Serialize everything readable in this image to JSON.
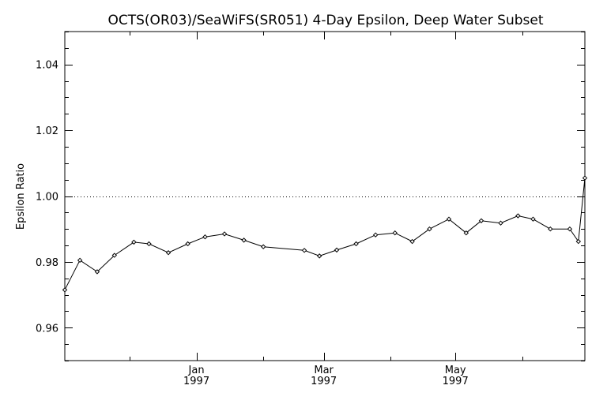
{
  "chart_data": {
    "type": "line",
    "title": "OCTS(OR03)/SeaWiFS(SR051) 4-Day Epsilon, Deep Water Subset",
    "xlabel": "",
    "ylabel": "Epsilon Ratio",
    "xlim": [
      "1996-11-01",
      "1997-06-30"
    ],
    "ylim": [
      0.95,
      1.05
    ],
    "y_ticks": [
      0.96,
      0.98,
      1.0,
      1.02,
      1.04
    ],
    "y_tick_labels": [
      "0.96",
      "0.98",
      "1.00",
      "1.02",
      "1.04"
    ],
    "x_ticks": [
      {
        "date": "1997-01-01",
        "line1": "Jan",
        "line2": "1997"
      },
      {
        "date": "1997-03-01",
        "line1": "Mar",
        "line2": "1997"
      },
      {
        "date": "1997-05-01",
        "line1": "May",
        "line2": "1997"
      }
    ],
    "reference_line": {
      "y": 1.0,
      "style": "dotted"
    },
    "series": [
      {
        "points": [
          {
            "x": "1996-11-01",
            "y": 0.9715
          },
          {
            "x": "1996-11-08",
            "y": 0.9805
          },
          {
            "x": "1996-11-16",
            "y": 0.977
          },
          {
            "x": "1996-11-24",
            "y": 0.982
          },
          {
            "x": "1996-12-03",
            "y": 0.986
          },
          {
            "x": "1996-12-10",
            "y": 0.9855
          },
          {
            "x": "1996-12-19",
            "y": 0.9828
          },
          {
            "x": "1996-12-28",
            "y": 0.9855
          },
          {
            "x": "1997-01-05",
            "y": 0.9876
          },
          {
            "x": "1997-01-14",
            "y": 0.9885
          },
          {
            "x": "1997-01-23",
            "y": 0.9866
          },
          {
            "x": "1997-02-01",
            "y": 0.9846
          },
          {
            "x": "1997-02-20",
            "y": 0.9835
          },
          {
            "x": "1997-02-27",
            "y": 0.9818
          },
          {
            "x": "1997-03-07",
            "y": 0.9836
          },
          {
            "x": "1997-03-16",
            "y": 0.9855
          },
          {
            "x": "1997-03-25",
            "y": 0.9882
          },
          {
            "x": "1997-04-03",
            "y": 0.9888
          },
          {
            "x": "1997-04-11",
            "y": 0.9862
          },
          {
            "x": "1997-04-19",
            "y": 0.99
          },
          {
            "x": "1997-04-28",
            "y": 0.993
          },
          {
            "x": "1997-05-06",
            "y": 0.9888
          },
          {
            "x": "1997-05-13",
            "y": 0.9925
          },
          {
            "x": "1997-05-22",
            "y": 0.9918
          },
          {
            "x": "1997-05-30",
            "y": 0.994
          },
          {
            "x": "1997-06-06",
            "y": 0.993
          },
          {
            "x": "1997-06-14",
            "y": 0.99
          },
          {
            "x": "1997-06-23",
            "y": 0.99
          },
          {
            "x": "1997-06-27",
            "y": 0.9862
          },
          {
            "x": "1997-06-30",
            "y": 1.0055
          }
        ]
      }
    ]
  }
}
